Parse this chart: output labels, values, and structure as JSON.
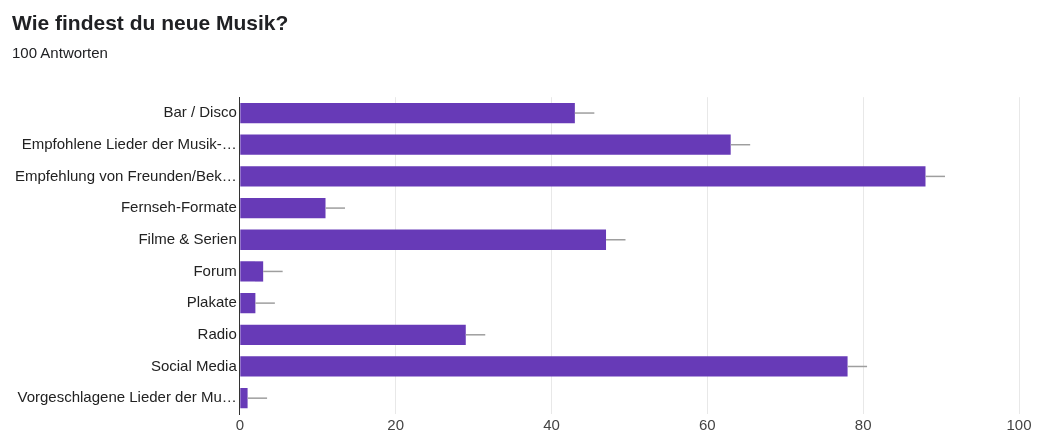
{
  "chart_data": {
    "type": "bar",
    "orientation": "horizontal",
    "title": "Wie findest du neue Musik?",
    "subtitle": "100 Antworten",
    "categories": [
      "Bar / Disco",
      "Empfohlene Lieder der Musik-…",
      "Empfehlung von Freunden/Bek…",
      "Fernseh-Formate",
      "Filme & Serien",
      "Forum",
      "Plakate",
      "Radio",
      "Social Media",
      "Vorgeschlagene Lieder der Mu…"
    ],
    "values": [
      43,
      63,
      88,
      11,
      47,
      3,
      2,
      29,
      78,
      1
    ],
    "errors": [
      [
        43,
        45.5
      ],
      [
        63,
        65.5
      ],
      [
        88,
        90.5
      ],
      [
        11,
        13.5
      ],
      [
        47,
        49.5
      ],
      [
        3,
        5.5
      ],
      [
        2,
        4.5
      ],
      [
        29,
        31.5
      ],
      [
        78,
        80.5
      ],
      [
        1,
        3.5
      ]
    ],
    "color": "#673ab7",
    "xlim": [
      0,
      100
    ],
    "xticks": [
      0,
      20,
      40,
      60,
      80,
      100
    ],
    "grid": "x",
    "legend": false
  }
}
